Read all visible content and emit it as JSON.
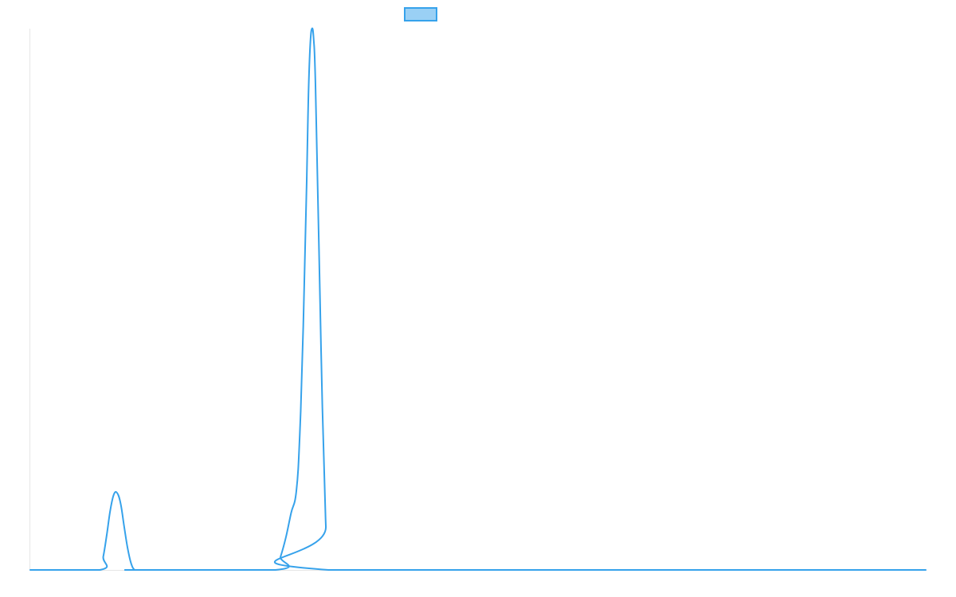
{
  "colors": {
    "series_stroke": "#36a2eb",
    "series_fill": "#9ad0f5",
    "axis": "#e6e6e6",
    "background": "#ffffff"
  },
  "chart_data": {
    "type": "line",
    "title": "",
    "xlabel": "",
    "ylabel": "",
    "grid": false,
    "legend": {
      "position": "top",
      "entries": [
        {
          "label": ""
        }
      ]
    },
    "xlim": [
      0,
      1030
    ],
    "ylim": [
      0,
      100
    ],
    "series": [
      {
        "color": "#36a2eb",
        "x": [
          0,
          80,
          84,
          88,
          92,
          96,
          100,
          104,
          108,
          112,
          116,
          120,
          124,
          282,
          288,
          294,
          300,
          306,
          310,
          314,
          318,
          320,
          322,
          324,
          326,
          328,
          332,
          336,
          340,
          343,
          1030
        ],
        "y": [
          0,
          0,
          2.5,
          6.5,
          11,
          13.9,
          14.2,
          12.2,
          8,
          4,
          1.2,
          0,
          0,
          0,
          2.5,
          6,
          10.5,
          14.5,
          25,
          45,
          72,
          88,
          97,
          100,
          98,
          90,
          60,
          30,
          8,
          0,
          0
        ]
      }
    ]
  }
}
